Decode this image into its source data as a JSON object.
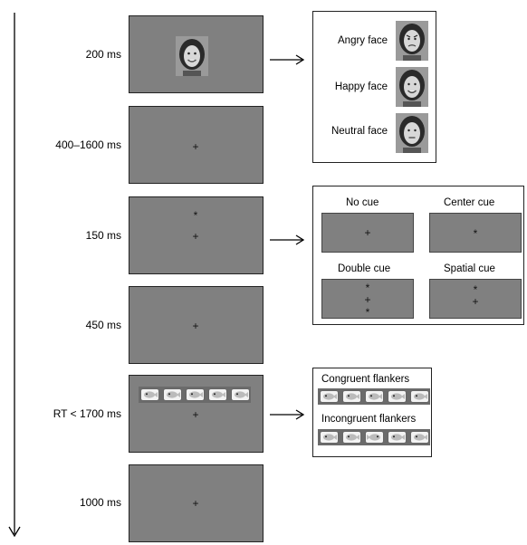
{
  "timeline": {
    "steps": [
      {
        "duration": "200 ms",
        "content": "face"
      },
      {
        "duration": "400–1600 ms",
        "content": "fixation"
      },
      {
        "duration": "150 ms",
        "content": "cue"
      },
      {
        "duration": "450 ms",
        "content": "fixation"
      },
      {
        "duration": "RT < 1700 ms",
        "content": "flankers"
      },
      {
        "duration": "1000 ms",
        "content": "fixation"
      }
    ],
    "fixation_symbol": "+",
    "cue_symbol": "*"
  },
  "face_panel": {
    "items": [
      {
        "label": "Angry face"
      },
      {
        "label": "Happy face"
      },
      {
        "label": "Neutral face"
      }
    ]
  },
  "cue_panel": {
    "items": [
      {
        "label": "No cue"
      },
      {
        "label": "Center cue"
      },
      {
        "label": "Double cue"
      },
      {
        "label": "Spatial cue"
      }
    ]
  },
  "flanker_panel": {
    "congruent_label": "Congruent flankers",
    "incongruent_label": "Incongruent flankers"
  },
  "colors": {
    "screen_gray": "#808080",
    "border": "#222222"
  }
}
